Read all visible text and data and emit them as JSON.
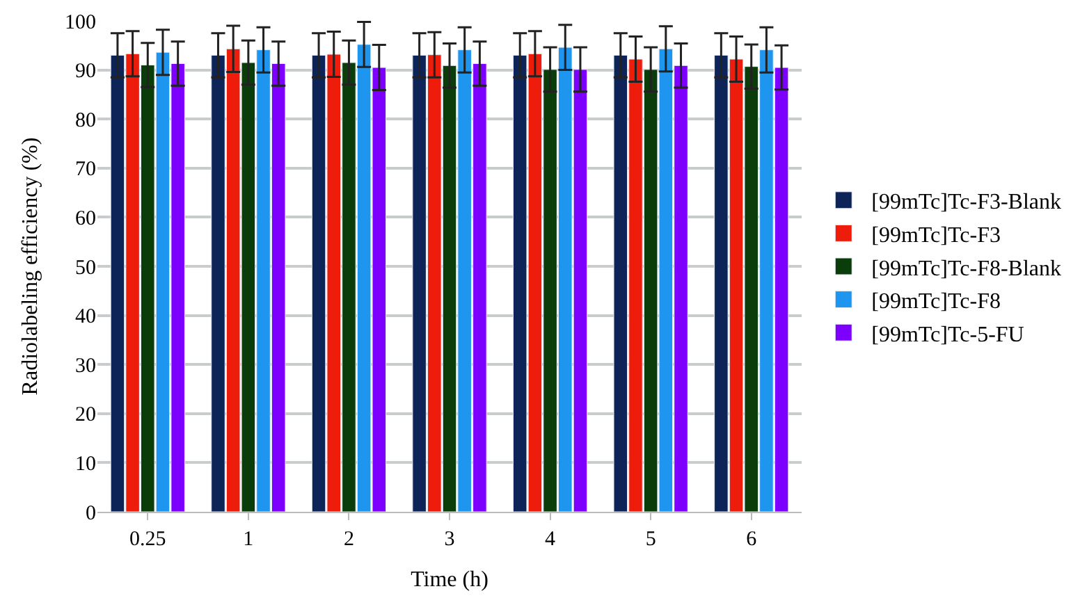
{
  "chart_data": {
    "type": "bar",
    "xlabel": "Time (h)",
    "ylabel": "Radiolabeling efficiency (%)",
    "categories": [
      "0.25",
      "1",
      "2",
      "3",
      "4",
      "5",
      "6"
    ],
    "series": [
      {
        "name": "[99mTc]Tc-F3-Blank",
        "color": "#0d2458",
        "values": [
          93,
          93,
          93,
          93,
          93,
          93,
          93
        ],
        "errors": [
          4.5,
          4.5,
          4.5,
          4.5,
          4.5,
          4.5,
          4.5
        ]
      },
      {
        "name": "[99mTc]Tc-F3",
        "color": "#ee1c0b",
        "values": [
          93.3,
          94.3,
          93.2,
          93.1,
          93.3,
          92.2,
          92.2
        ],
        "errors": [
          4.6,
          4.7,
          4.6,
          4.6,
          4.6,
          4.6,
          4.6
        ]
      },
      {
        "name": "[99mTc]Tc-F8-Blank",
        "color": "#0b3d0b",
        "values": [
          91,
          91.5,
          91.5,
          90.9,
          90.1,
          90.1,
          90.7
        ],
        "errors": [
          4.5,
          4.5,
          4.5,
          4.5,
          4.5,
          4.5,
          4.5
        ]
      },
      {
        "name": "[99mTc]Tc-F8",
        "color": "#1e96f0",
        "values": [
          93.6,
          94.1,
          95.2,
          94.1,
          94.6,
          94.3,
          94.1
        ],
        "errors": [
          4.6,
          4.6,
          4.6,
          4.6,
          4.6,
          4.6,
          4.6
        ]
      },
      {
        "name": "[99mTc]Tc-5-FU",
        "color": "#7d00ff",
        "values": [
          91.3,
          91.3,
          90.5,
          91.3,
          90.1,
          90.9,
          90.5
        ],
        "errors": [
          4.5,
          4.5,
          4.6,
          4.5,
          4.5,
          4.5,
          4.5
        ]
      }
    ],
    "ylim": [
      0,
      100
    ],
    "yticks": [
      0,
      10,
      20,
      30,
      40,
      50,
      60,
      70,
      80,
      90,
      100
    ],
    "grid": "y",
    "legend": "right"
  }
}
